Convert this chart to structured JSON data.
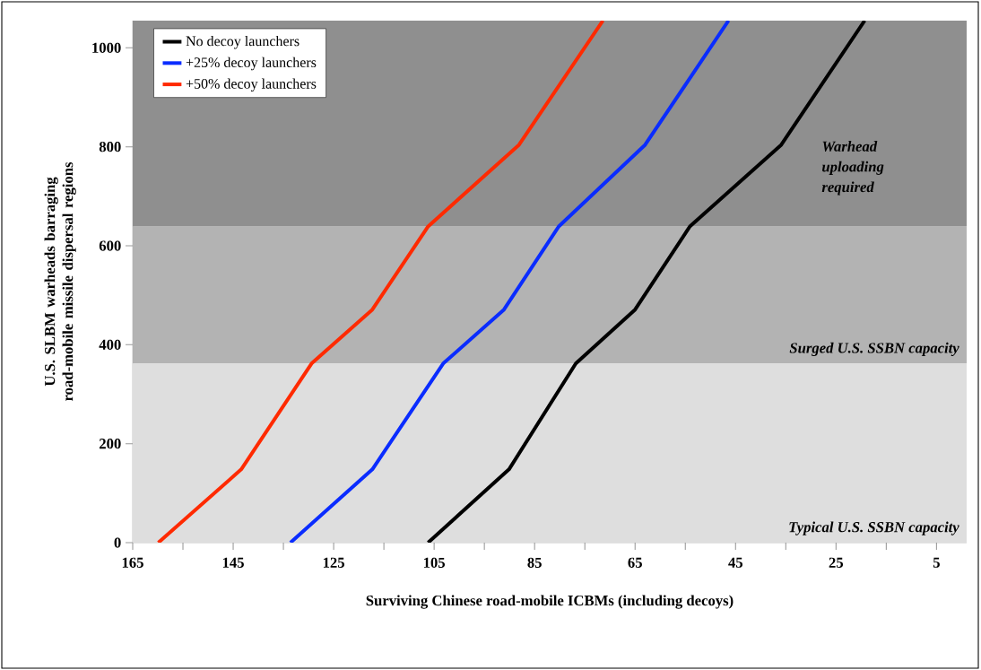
{
  "chart_data": {
    "type": "line",
    "xlabel": "Surviving Chinese road-mobile ICBMs (including decoys)",
    "ylabel": "U.S. SLBM warheads barraging road-mobile missile dispersal regions",
    "xlim": [
      165,
      -1
    ],
    "ylim": [
      0,
      1055
    ],
    "xticks": [
      165,
      {
        "value": 155,
        "label": null
      },
      145,
      {
        "value": 135,
        "label": null
      },
      125,
      {
        "value": 115,
        "label": null
      },
      105,
      {
        "value": 95,
        "label": null
      },
      85,
      {
        "value": 75,
        "label": null
      },
      65,
      {
        "value": 55,
        "label": null
      },
      45,
      {
        "value": 35,
        "label": null
      },
      25,
      {
        "value": 15,
        "label": null
      },
      5
    ],
    "yticks": [
      0,
      200,
      400,
      600,
      800,
      1000
    ],
    "legend": "top left",
    "line_style": "solid",
    "marker": "none",
    "grid": false,
    "bands": [
      {
        "axis": "y",
        "from": 0,
        "to": 362,
        "label": "Typical U.S. SSBN capacity",
        "color": "#dedede"
      },
      {
        "axis": "y",
        "from": 362,
        "to": 639,
        "label": "Surged U.S. SSBN capacity",
        "color": "#b3b3b3"
      },
      {
        "axis": "y",
        "from": 639,
        "to": 1055,
        "label": "Warhead uploading required",
        "color": "#8f8f8f"
      }
    ],
    "series": [
      {
        "name": "No decoy launchers",
        "color": "#000000",
        "x": [
          106.2,
          90.1,
          76.8,
          65.0,
          54.1,
          35.9,
          19.3
        ],
        "values": [
          0,
          148,
          362,
          471,
          639,
          804,
          1055
        ]
      },
      {
        "name": "+25% decoy launchers",
        "color": "#0a2cff",
        "x": [
          133.6,
          117.3,
          103.2,
          91.1,
          80.2,
          63.0,
          46.4
        ],
        "values": [
          0,
          148,
          362,
          471,
          639,
          804,
          1055
        ]
      },
      {
        "name": "+50% decoy launchers",
        "color": "#ff2a00",
        "x": [
          159.9,
          143.4,
          129.4,
          117.3,
          106.2,
          88.1,
          71.4
        ],
        "values": [
          0,
          148,
          362,
          471,
          639,
          804,
          1055
        ]
      }
    ]
  }
}
